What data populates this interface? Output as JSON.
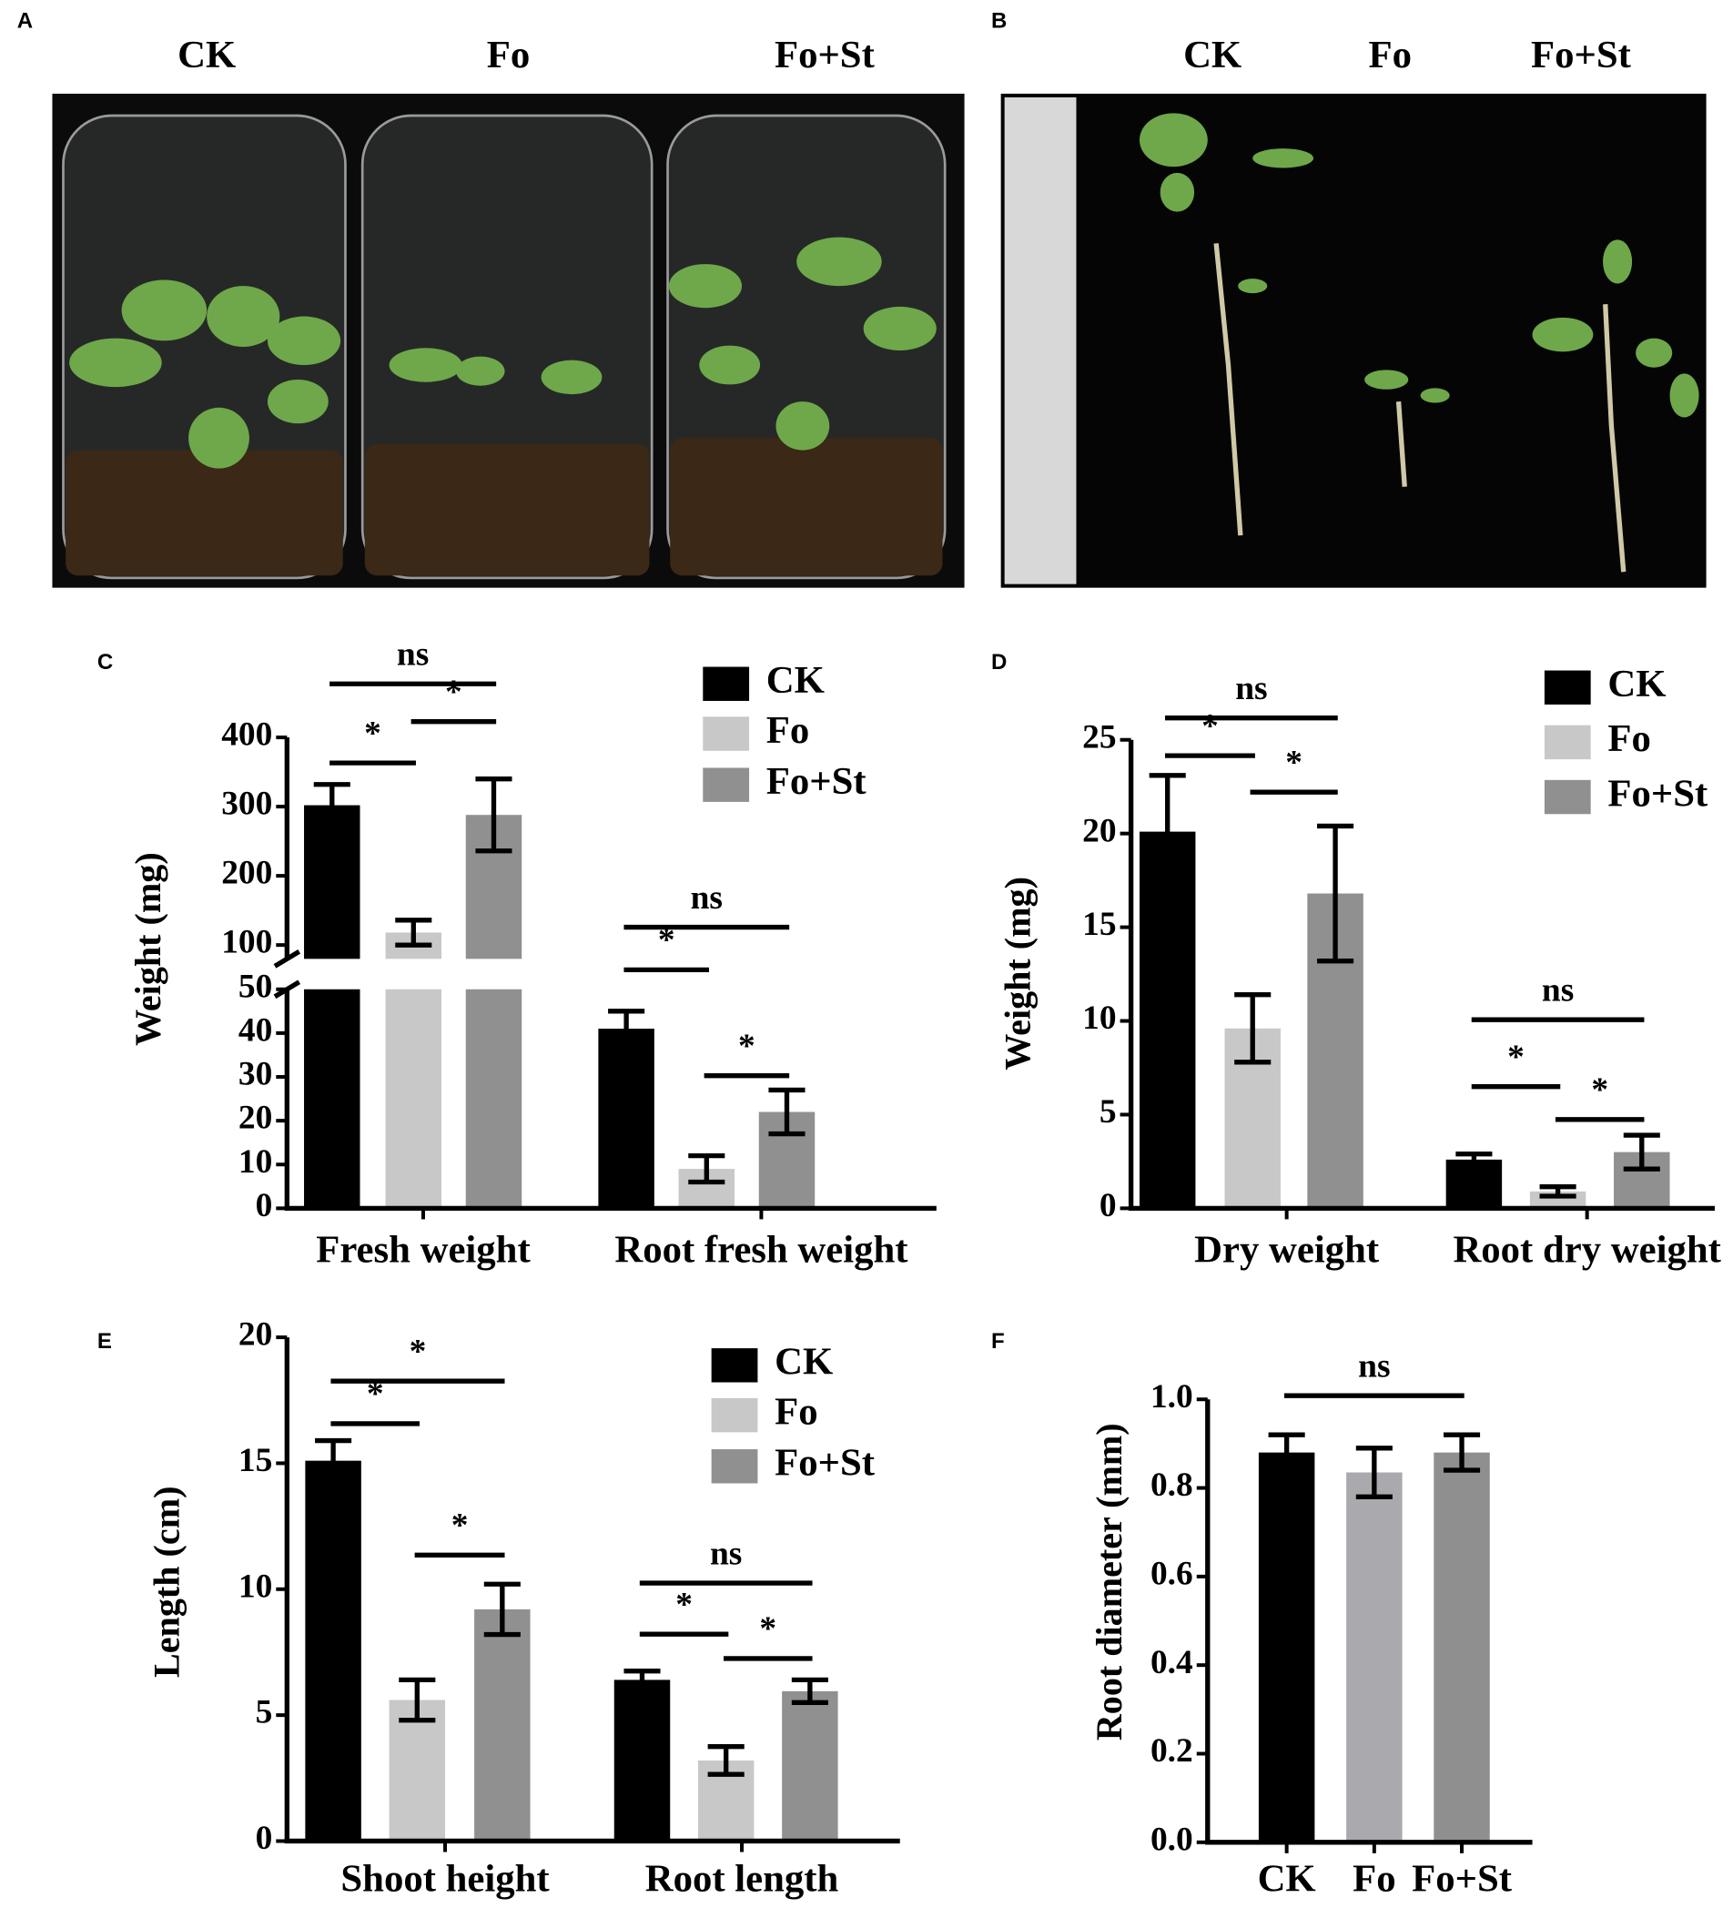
{
  "photos": [
    {
      "panel": "A",
      "labels": [
        "CK",
        "Fo",
        "Fo+St"
      ]
    },
    {
      "panel": "B",
      "labels": [
        "CK",
        "Fo",
        "Fo+St"
      ]
    }
  ],
  "chart_data": [
    {
      "panel": "C",
      "type": "bar",
      "ylabel": "Weight (mg)",
      "categories": [
        "Fresh weight",
        "Root fresh weight"
      ],
      "series": [
        {
          "name": "CK",
          "color": "#000000",
          "values": [
            302,
            41
          ],
          "errors": [
            30,
            4
          ]
        },
        {
          "name": "Fo",
          "color": "#c8c8c8",
          "values": [
            118,
            9
          ],
          "errors": [
            18,
            3
          ]
        },
        {
          "name": "Fo+St",
          "color": "#909090",
          "values": [
            288,
            22
          ],
          "errors": [
            52,
            5
          ]
        }
      ],
      "ylim_lower": [
        0,
        50
      ],
      "ylim_upper": [
        80,
        400
      ],
      "yticks": [
        0,
        10,
        20,
        30,
        40,
        50,
        100,
        200,
        300,
        400
      ],
      "annotations": [
        {
          "text": "ns",
          "category": 0,
          "bars": [
            0,
            2
          ]
        },
        {
          "text": "*",
          "category": 0,
          "bars": [
            0,
            1
          ]
        },
        {
          "text": "*",
          "category": 0,
          "bars": [
            1,
            2
          ]
        },
        {
          "text": "ns",
          "category": 1,
          "bars": [
            0,
            2
          ]
        },
        {
          "text": "*",
          "category": 1,
          "bars": [
            0,
            1
          ]
        },
        {
          "text": "*",
          "category": 1,
          "bars": [
            1,
            2
          ]
        }
      ]
    },
    {
      "panel": "D",
      "type": "bar",
      "ylabel": "Weight (mg)",
      "categories": [
        "Dry weight",
        "Root dry weight"
      ],
      "series": [
        {
          "name": "CK",
          "color": "#000000",
          "values": [
            20.1,
            2.6
          ],
          "errors": [
            3,
            0.3
          ]
        },
        {
          "name": "Fo",
          "color": "#c8c8c8",
          "values": [
            9.6,
            0.9
          ],
          "errors": [
            1.8,
            0.25
          ]
        },
        {
          "name": "Fo+St",
          "color": "#909090",
          "values": [
            16.8,
            3.0
          ],
          "errors": [
            3.6,
            0.9
          ]
        }
      ],
      "ylim": [
        0,
        25
      ],
      "yticks": [
        0,
        5,
        10,
        15,
        20,
        25
      ],
      "annotations": [
        {
          "text": "ns",
          "category": 0,
          "bars": [
            0,
            2
          ]
        },
        {
          "text": "*",
          "category": 0,
          "bars": [
            0,
            1
          ]
        },
        {
          "text": "*",
          "category": 0,
          "bars": [
            1,
            2
          ]
        },
        {
          "text": "ns",
          "category": 1,
          "bars": [
            0,
            2
          ]
        },
        {
          "text": "*",
          "category": 1,
          "bars": [
            0,
            1
          ]
        },
        {
          "text": "*",
          "category": 1,
          "bars": [
            1,
            2
          ]
        }
      ]
    },
    {
      "panel": "E",
      "type": "bar",
      "ylabel": "Length (cm)",
      "categories": [
        "Shoot height",
        "Root length"
      ],
      "series": [
        {
          "name": "CK",
          "color": "#000000",
          "values": [
            15.1,
            6.4
          ],
          "errors": [
            0.8,
            0.35
          ]
        },
        {
          "name": "Fo",
          "color": "#c8c8c8",
          "values": [
            5.6,
            3.2
          ],
          "errors": [
            0.8,
            0.55
          ]
        },
        {
          "name": "Fo+St",
          "color": "#909090",
          "values": [
            9.2,
            5.95
          ],
          "errors": [
            1.0,
            0.45
          ]
        }
      ],
      "ylim": [
        0,
        20
      ],
      "yticks": [
        0,
        5,
        10,
        15,
        20
      ],
      "annotations": [
        {
          "text": "*",
          "category": 0,
          "bars": [
            0,
            2
          ]
        },
        {
          "text": "*",
          "category": 0,
          "bars": [
            0,
            1
          ]
        },
        {
          "text": "*",
          "category": 0,
          "bars": [
            1,
            2
          ]
        },
        {
          "text": "ns",
          "category": 1,
          "bars": [
            0,
            2
          ]
        },
        {
          "text": "*",
          "category": 1,
          "bars": [
            0,
            1
          ]
        },
        {
          "text": "*",
          "category": 1,
          "bars": [
            1,
            2
          ]
        }
      ]
    },
    {
      "panel": "F",
      "type": "bar",
      "ylabel": "Root diameter (mm)",
      "categories": [
        "CK",
        "Fo",
        "Fo+St"
      ],
      "values": [
        0.88,
        0.835,
        0.88
      ],
      "errors": [
        0.04,
        0.055,
        0.04
      ],
      "colors": [
        "#000000",
        "#a9a9ae",
        "#8f8f8f"
      ],
      "ylim": [
        0,
        1
      ],
      "yticks": [
        {
          "value": 0,
          "label": "0.0"
        },
        0.2,
        0.4,
        0.6,
        0.8,
        {
          "value": 1,
          "label": "1.0"
        }
      ],
      "annotations": [
        {
          "text": "ns",
          "bars": [
            0,
            2
          ]
        }
      ]
    }
  ]
}
